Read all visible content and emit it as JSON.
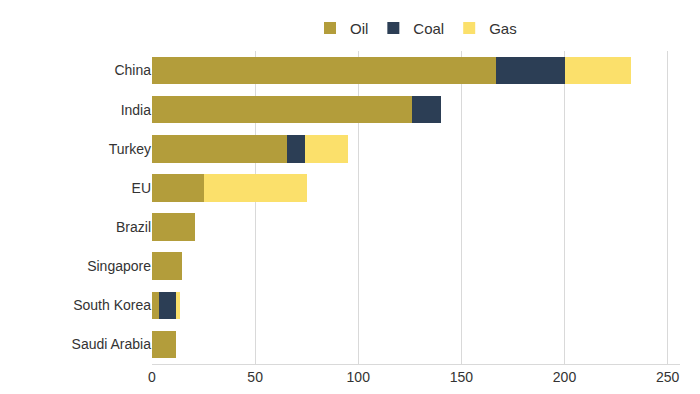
{
  "chart_data": {
    "type": "bar",
    "orientation": "horizontal",
    "stacked": true,
    "grid": true,
    "legend": "top",
    "categories": [
      "China",
      "India",
      "Turkey",
      "EU",
      "Brazil",
      "Singapore",
      "South Korea",
      "Saudi Arabia"
    ],
    "series": [
      {
        "name": "Oil",
        "color": "#b39d3b",
        "values": [
          167,
          126,
          65.5,
          25,
          21,
          14.5,
          3.5,
          11.5
        ]
      },
      {
        "name": "Coal",
        "color": "#2c3e55",
        "values": [
          33,
          14,
          8.5,
          0,
          0,
          0,
          8,
          0
        ]
      },
      {
        "name": "Gas",
        "color": "#fbe06b",
        "values": [
          32,
          0,
          21,
          50,
          0,
          0,
          2,
          0
        ]
      }
    ],
    "xlim": [
      0,
      256
    ],
    "xticks": [
      0,
      50,
      100,
      150,
      200,
      250
    ]
  }
}
